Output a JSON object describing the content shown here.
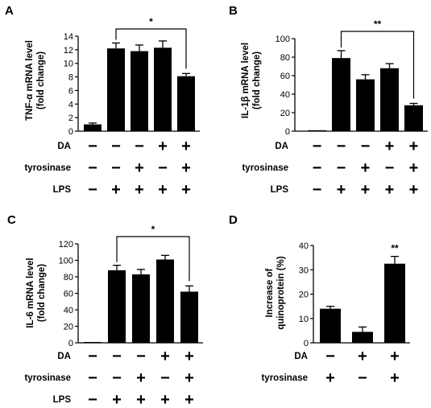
{
  "chart_data": [
    {
      "type": "bar",
      "panel": "A",
      "ylabel": [
        "TNF-α mRNA level",
        "(fold change)"
      ],
      "ylim": [
        0,
        14
      ],
      "yticks": [
        0,
        2,
        4,
        6,
        8,
        10,
        12,
        14
      ],
      "values": [
        1.0,
        12.2,
        11.8,
        12.3,
        8.1
      ],
      "errors": [
        0.2,
        0.8,
        0.9,
        1.0,
        0.4
      ],
      "rows": [
        {
          "label": "DA",
          "signs": [
            "−",
            "−",
            "−",
            "+",
            "+"
          ]
        },
        {
          "label": "tyrosinase",
          "signs": [
            "−",
            "−",
            "+",
            "−",
            "+"
          ]
        },
        {
          "label": "LPS",
          "signs": [
            "−",
            "+",
            "+",
            "+",
            "+"
          ]
        }
      ],
      "sig": {
        "from": 1,
        "to": 4,
        "label": "*"
      }
    },
    {
      "type": "bar",
      "panel": "B",
      "ylabel": [
        "IL-1β mRNA level",
        "(fold change)"
      ],
      "ylim": [
        0,
        100
      ],
      "yticks": [
        0,
        20,
        40,
        60,
        80,
        100
      ],
      "values": [
        1,
        79,
        56,
        68,
        28
      ],
      "errors": [
        0.5,
        8,
        5,
        5,
        2
      ],
      "rows": [
        {
          "label": "DA",
          "signs": [
            "−",
            "−",
            "−",
            "+",
            "+"
          ]
        },
        {
          "label": "tyrosinase",
          "signs": [
            "−",
            "−",
            "+",
            "−",
            "+"
          ]
        },
        {
          "label": "LPS",
          "signs": [
            "−",
            "+",
            "+",
            "+",
            "+"
          ]
        }
      ],
      "sig": {
        "from": 1,
        "to": 4,
        "label": "**"
      }
    },
    {
      "type": "bar",
      "panel": "C",
      "ylabel": [
        "IL-6 mRNA level",
        "(fold change)"
      ],
      "ylim": [
        0,
        120
      ],
      "yticks": [
        0,
        20,
        40,
        60,
        80,
        100,
        120
      ],
      "values": [
        1,
        88,
        83,
        101,
        62
      ],
      "errors": [
        0.5,
        6,
        6,
        5,
        7
      ],
      "rows": [
        {
          "label": "DA",
          "signs": [
            "−",
            "−",
            "−",
            "+",
            "+"
          ]
        },
        {
          "label": "tyrosinase",
          "signs": [
            "−",
            "−",
            "+",
            "−",
            "+"
          ]
        },
        {
          "label": "LPS",
          "signs": [
            "−",
            "+",
            "+",
            "+",
            "+"
          ]
        }
      ],
      "sig": {
        "from": 1,
        "to": 4,
        "label": "*"
      }
    },
    {
      "type": "bar",
      "panel": "D",
      "ylabel": [
        "Increase of",
        "quinoprotein (%)"
      ],
      "ylim": [
        0,
        40
      ],
      "yticks": [
        0,
        10,
        20,
        30,
        40
      ],
      "values": [
        14,
        4.5,
        32.5
      ],
      "errors": [
        1,
        2,
        3
      ],
      "rows": [
        {
          "label": "DA",
          "signs": [
            "−",
            "+",
            "+"
          ]
        },
        {
          "label": "tyrosinase",
          "signs": [
            "+",
            "−",
            "+"
          ]
        }
      ],
      "marker": {
        "index": 2,
        "label": "**"
      }
    }
  ],
  "colors": {
    "bar": "#000000",
    "axis": "#000000",
    "background": "#ffffff"
  }
}
